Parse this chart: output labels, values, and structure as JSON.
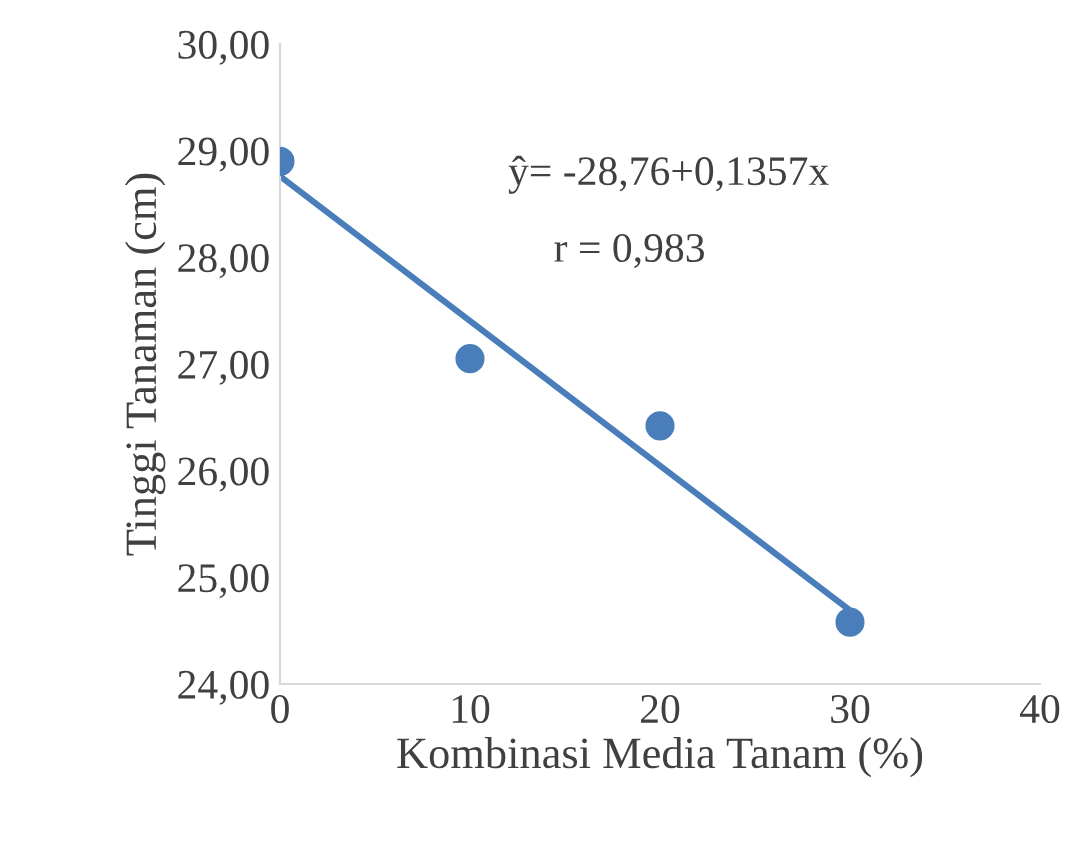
{
  "chart_data": {
    "type": "scatter",
    "xlabel": "Kombinasi Media Tanam (%)",
    "ylabel": "Tinggi Tanaman (cm)",
    "series": [
      {
        "color": "#4a7ebb",
        "x": [
          0,
          10,
          20,
          30
        ],
        "values": [
          28.9,
          27.05,
          26.42,
          24.58
        ],
        "marker": "circle"
      },
      {
        "type": "line",
        "color": "#4a7ebb",
        "x": [
          0,
          30
        ],
        "values": [
          28.76,
          24.69
        ],
        "marker": "none",
        "line_style": "solid"
      }
    ],
    "xlim": [
      0,
      40
    ],
    "xticks": [
      0,
      10,
      20,
      30,
      40
    ],
    "ylim": [
      24,
      30
    ],
    "yticks": [
      {
        "value": 24,
        "label": "24,00"
      },
      {
        "value": 25,
        "label": "25,00"
      },
      {
        "value": 26,
        "label": "26,00"
      },
      {
        "value": 27,
        "label": "27,00"
      },
      {
        "value": 28,
        "label": "28,00"
      },
      {
        "value": 29,
        "label": "29,00"
      },
      {
        "value": 30,
        "label": "30,00"
      }
    ],
    "grid": false,
    "legend": false,
    "annotations": [
      "ŷ= -28,76+0,1357x",
      "r = 0,983"
    ]
  }
}
